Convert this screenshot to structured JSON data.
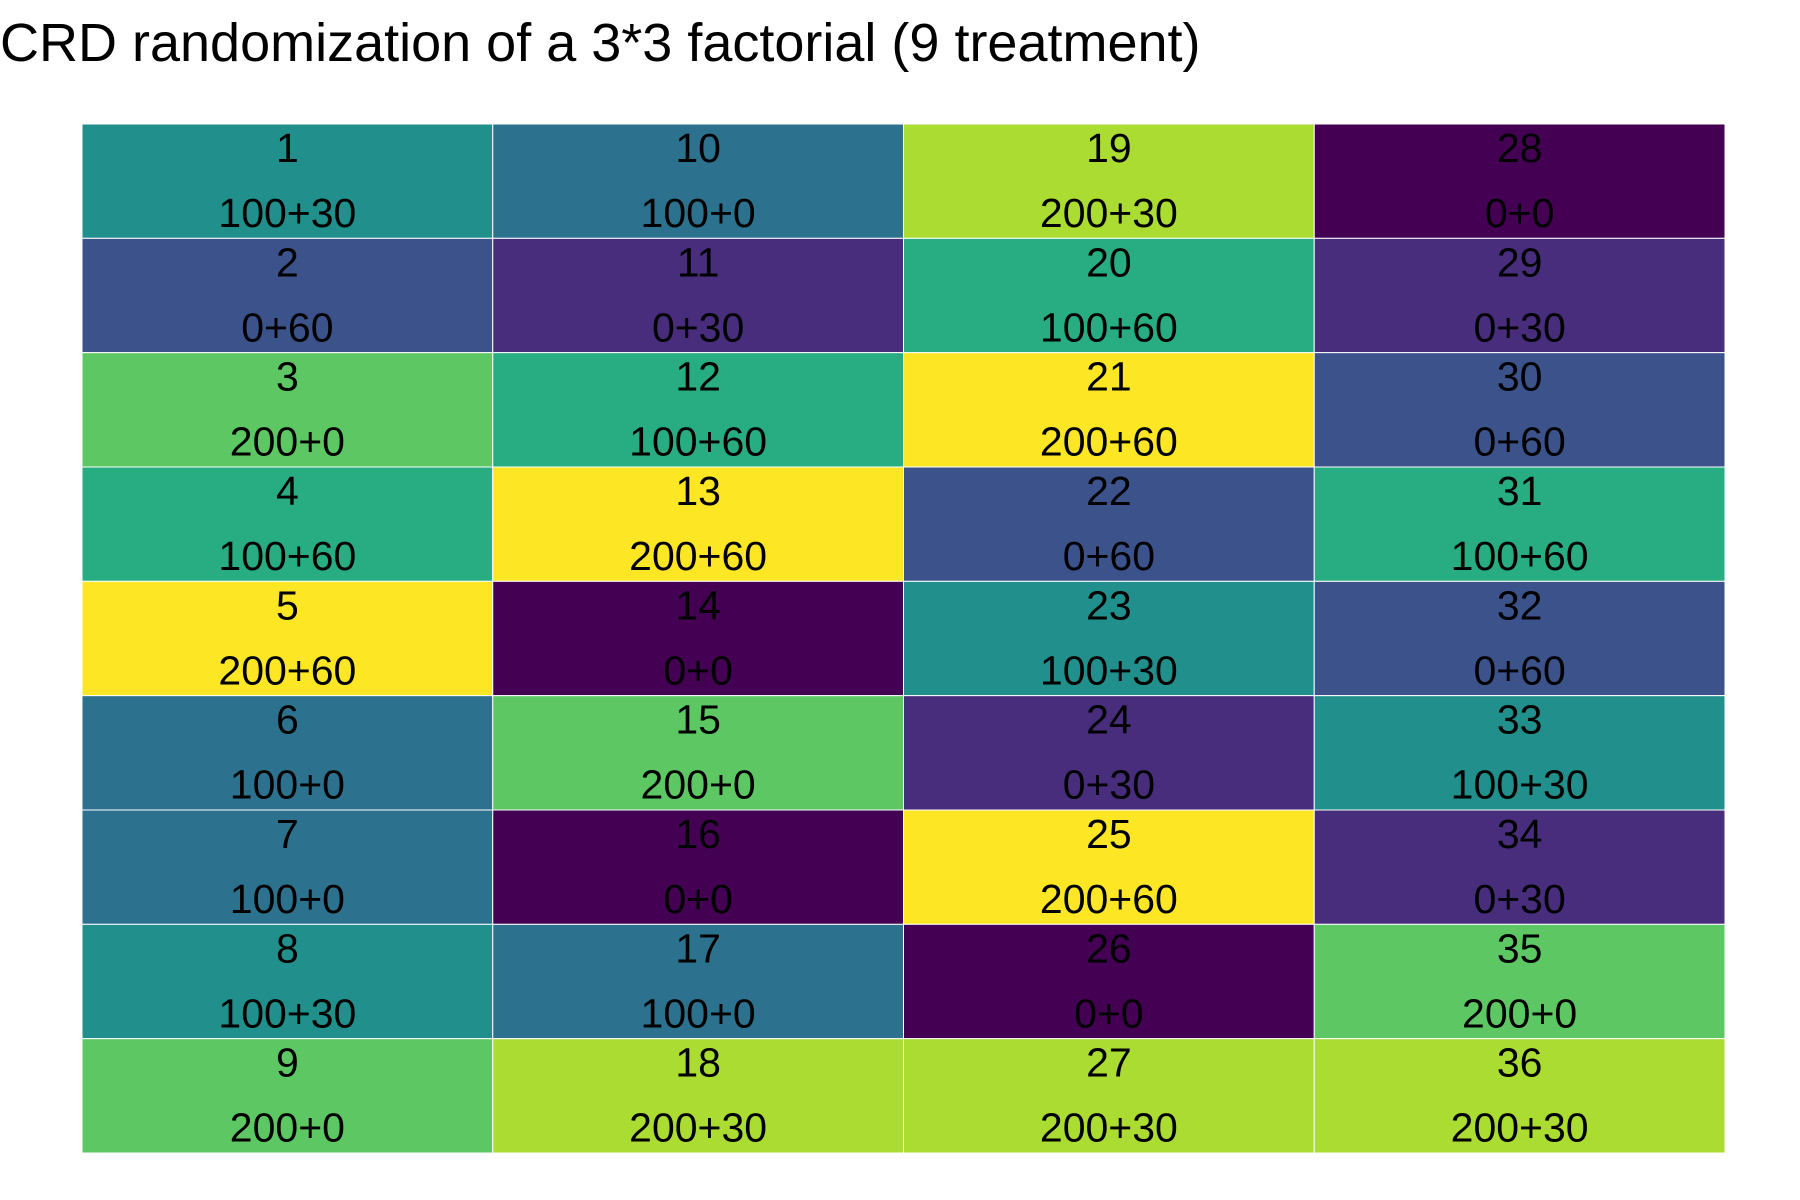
{
  "chart_data": {
    "type": "heatmap",
    "title": "CRD randomization of a 3*3 factorial (9 treatment)",
    "xlabel": "",
    "ylabel": "",
    "n_cols": 4,
    "n_rows": 9,
    "legend": "none",
    "grid": false,
    "palette": {
      "0+0": "#440154",
      "0+30": "#472D7B",
      "0+60": "#3B528B",
      "100+0": "#2C728E",
      "100+30": "#21908C",
      "100+60": "#27AD81",
      "200+0": "#5DC863",
      "200+30": "#AADC32",
      "200+60": "#FDE725"
    },
    "plots": [
      {
        "plot": 1,
        "treatment": "100+30"
      },
      {
        "plot": 2,
        "treatment": "0+60"
      },
      {
        "plot": 3,
        "treatment": "200+0"
      },
      {
        "plot": 4,
        "treatment": "100+60"
      },
      {
        "plot": 5,
        "treatment": "200+60"
      },
      {
        "plot": 6,
        "treatment": "100+0"
      },
      {
        "plot": 7,
        "treatment": "100+0"
      },
      {
        "plot": 8,
        "treatment": "100+30"
      },
      {
        "plot": 9,
        "treatment": "200+0"
      },
      {
        "plot": 10,
        "treatment": "100+0"
      },
      {
        "plot": 11,
        "treatment": "0+30"
      },
      {
        "plot": 12,
        "treatment": "100+60"
      },
      {
        "plot": 13,
        "treatment": "200+60"
      },
      {
        "plot": 14,
        "treatment": "0+0"
      },
      {
        "plot": 15,
        "treatment": "200+0"
      },
      {
        "plot": 16,
        "treatment": "0+0"
      },
      {
        "plot": 17,
        "treatment": "100+0"
      },
      {
        "plot": 18,
        "treatment": "200+30"
      },
      {
        "plot": 19,
        "treatment": "200+30"
      },
      {
        "plot": 20,
        "treatment": "100+60"
      },
      {
        "plot": 21,
        "treatment": "200+60"
      },
      {
        "plot": 22,
        "treatment": "0+60"
      },
      {
        "plot": 23,
        "treatment": "100+30"
      },
      {
        "plot": 24,
        "treatment": "0+30"
      },
      {
        "plot": 25,
        "treatment": "200+60"
      },
      {
        "plot": 26,
        "treatment": "0+0"
      },
      {
        "plot": 27,
        "treatment": "200+30"
      },
      {
        "plot": 28,
        "treatment": "0+0"
      },
      {
        "plot": 29,
        "treatment": "0+30"
      },
      {
        "plot": 30,
        "treatment": "0+60"
      },
      {
        "plot": 31,
        "treatment": "100+60"
      },
      {
        "plot": 32,
        "treatment": "0+60"
      },
      {
        "plot": 33,
        "treatment": "100+30"
      },
      {
        "plot": 34,
        "treatment": "0+30"
      },
      {
        "plot": 35,
        "treatment": "200+0"
      },
      {
        "plot": 36,
        "treatment": "200+30"
      }
    ]
  }
}
